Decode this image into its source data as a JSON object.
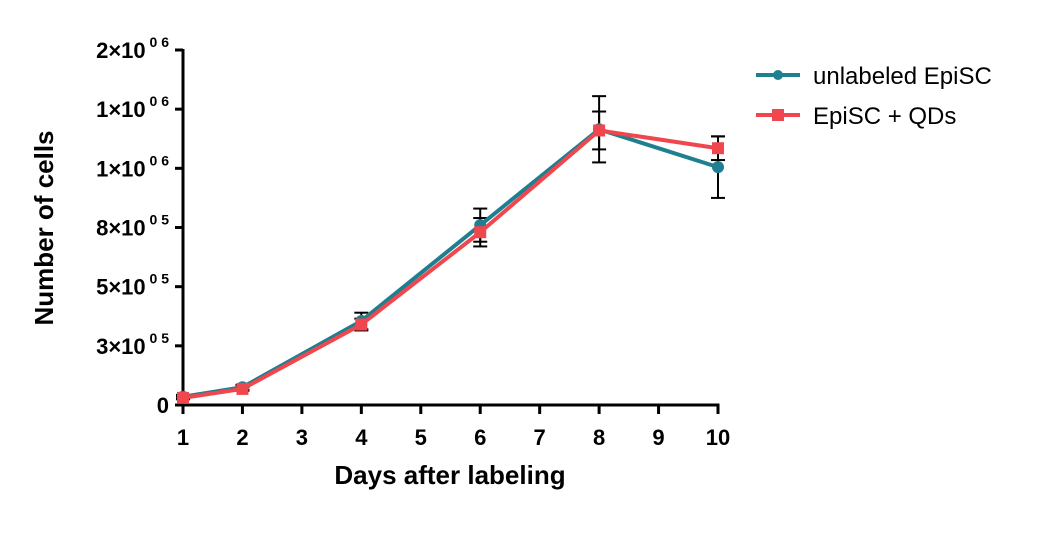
{
  "chart_data": {
    "type": "line",
    "xlabel": "Days after labeling",
    "ylabel": "Number of cells",
    "x_ticks": [
      1,
      2,
      3,
      4,
      5,
      6,
      7,
      8,
      9,
      10
    ],
    "x_tick_labels": [
      "1",
      "2",
      "3",
      "4",
      "5",
      "6",
      "7",
      "8",
      "9",
      "10"
    ],
    "xlim": [
      1,
      10
    ],
    "ylim": [
      0,
      1500000
    ],
    "y_ticks": [
      0,
      250000,
      500000,
      750000,
      1000000,
      1250000,
      1500000
    ],
    "y_tick_labels": [
      {
        "base": "0",
        "exp": ""
      },
      {
        "base": "3×10",
        "exp": "0 5"
      },
      {
        "base": "5×10",
        "exp": "0 5"
      },
      {
        "base": "8×10",
        "exp": "0 5"
      },
      {
        "base": "1×10",
        "exp": "0 6"
      },
      {
        "base": "1×10",
        "exp": "0 6"
      },
      {
        "base": "2×10",
        "exp": "0 6"
      }
    ],
    "grid": false,
    "legend_position": "top-right",
    "series": [
      {
        "name": "unlabeled EpiSC",
        "color": "#1f7f8f",
        "marker": "circle",
        "x": [
          1,
          2,
          4,
          6,
          8,
          10
        ],
        "y": [
          35000,
          75000,
          355000,
          760000,
          1165000,
          1005000
        ],
        "err": [
          8000,
          10000,
          35000,
          70000,
          140000,
          130000
        ]
      },
      {
        "name": "EpiSC + QDs",
        "color": "#f0474f",
        "marker": "square",
        "x": [
          1,
          2,
          4,
          6,
          8,
          10
        ],
        "y": [
          30000,
          68000,
          340000,
          730000,
          1160000,
          1085000
        ],
        "err": [
          6000,
          8000,
          25000,
          60000,
          80000,
          50000
        ]
      }
    ]
  }
}
